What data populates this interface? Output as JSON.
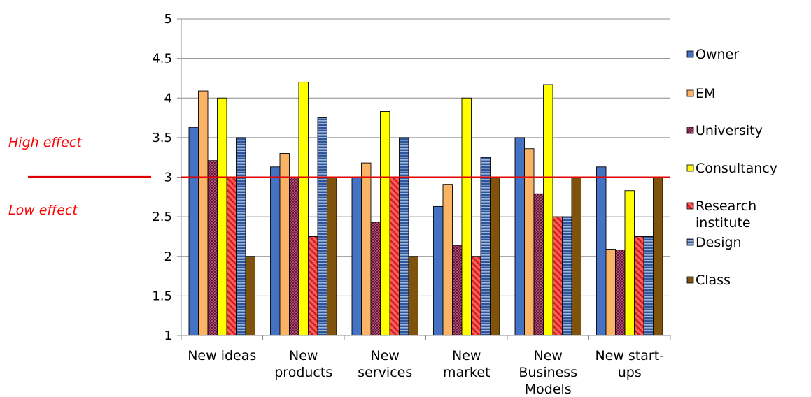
{
  "chart_data": {
    "type": "bar",
    "categories": [
      "New ideas",
      "New products",
      "New services",
      "New market",
      "New Business Models",
      "New start-ups"
    ],
    "category_lines": [
      [
        "New ideas"
      ],
      [
        "New",
        "products"
      ],
      [
        "New",
        "services"
      ],
      [
        "New",
        "market"
      ],
      [
        "New",
        "Business",
        "Models"
      ],
      [
        "New start-",
        "ups"
      ]
    ],
    "series": [
      {
        "name": "Owner",
        "values": [
          3.63,
          3.13,
          3.0,
          2.63,
          3.5,
          3.13
        ],
        "color": "#4472c4",
        "pattern": "solid"
      },
      {
        "name": "EM",
        "values": [
          4.09,
          3.3,
          3.18,
          2.91,
          3.36,
          2.09
        ],
        "color": "#fbb466",
        "pattern": "solid"
      },
      {
        "name": "University",
        "values": [
          3.21,
          3.0,
          2.43,
          2.14,
          2.79,
          2.08
        ],
        "color": "#6b1238",
        "pattern": "dots"
      },
      {
        "name": "Consultancy",
        "values": [
          4.0,
          4.2,
          3.83,
          4.0,
          4.17,
          2.83
        ],
        "color": "#ffff00",
        "pattern": "solid"
      },
      {
        "name": "Research institute",
        "legend_lines": [
          "Research",
          "institute"
        ],
        "values": [
          3.0,
          2.25,
          3.0,
          2.0,
          2.5,
          2.25
        ],
        "color": "#ff3b3b",
        "pattern": "diagonal"
      },
      {
        "name": "Design",
        "values": [
          3.5,
          3.75,
          3.5,
          3.25,
          2.5,
          2.25
        ],
        "color": "#2e5597",
        "pattern": "hstripes"
      },
      {
        "name": "Class",
        "values": [
          2.0,
          3.0,
          2.0,
          3.0,
          3.0,
          3.0
        ],
        "color": "#80530d",
        "pattern": "solid"
      }
    ],
    "ylim": [
      1,
      5
    ],
    "yticks": [
      "1",
      "1.5",
      "2",
      "2.5",
      "3",
      "3.5",
      "4",
      "4.5",
      "5"
    ],
    "reference_line": {
      "value": 3,
      "color": "#e00000"
    },
    "annotations": {
      "high": "High effect",
      "low": "Low effect"
    },
    "grid": true,
    "legend_position": "right"
  }
}
